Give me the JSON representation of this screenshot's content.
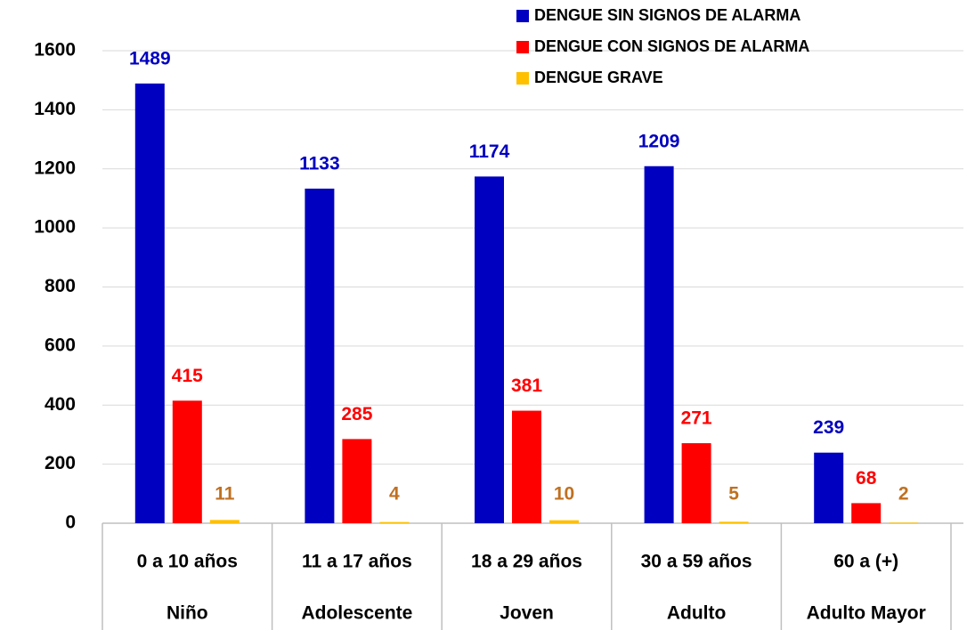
{
  "chart_data": {
    "type": "bar",
    "categories": [
      "0 a 10 años",
      "11 a 17 años",
      "18 a 29 años",
      "30 a 59 años",
      "60 a (+)"
    ],
    "category_groups": [
      "Niño",
      "Adolescente",
      "Joven",
      "Adulto",
      "Adulto Mayor"
    ],
    "series": [
      {
        "name": "DENGUE SIN SIGNOS DE ALARMA",
        "color": "#0000c0",
        "label_color": "#0000c0",
        "values": [
          1489,
          1133,
          1174,
          1209,
          239
        ]
      },
      {
        "name": "DENGUE CON SIGNOS DE ALARMA",
        "color": "#ff0000",
        "label_color": "#ff0000",
        "values": [
          415,
          285,
          381,
          271,
          68
        ]
      },
      {
        "name": "DENGUE GRAVE",
        "color": "#ffc000",
        "label_color": "#c07020",
        "values": [
          11,
          4,
          10,
          5,
          2
        ]
      }
    ],
    "ylim": [
      0,
      1600
    ],
    "yticks": [
      0,
      200,
      400,
      600,
      800,
      1000,
      1200,
      1400,
      1600
    ],
    "grid": true,
    "legend": "top-right"
  }
}
